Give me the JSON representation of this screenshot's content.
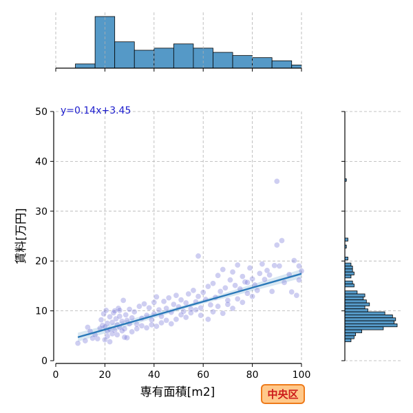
{
  "chart_data": {
    "type": "scatter",
    "main": {
      "xlabel": "専有面積[m2]",
      "ylabel": "賃料[万円]",
      "xlim": [
        0,
        100
      ],
      "ylim": [
        0,
        50
      ],
      "xticks": [
        0,
        20,
        40,
        60,
        80,
        100
      ],
      "yticks": [
        0,
        10,
        20,
        30,
        40,
        50
      ],
      "grid": true,
      "annotation": "y=0.14x+3.45",
      "regression": {
        "slope": 0.14,
        "intercept": 3.45,
        "x_range": [
          9,
          100
        ]
      },
      "points": [
        [
          18,
          6.5
        ],
        [
          18.5,
          8.2
        ],
        [
          19,
          7.1
        ],
        [
          19.5,
          9.4
        ],
        [
          20,
          6.8
        ],
        [
          20.5,
          10.1
        ],
        [
          21,
          7.5
        ],
        [
          21,
          5.9
        ],
        [
          22,
          8.8
        ],
        [
          22,
          6.3
        ],
        [
          23,
          7.7
        ],
        [
          23.5,
          9.6
        ],
        [
          24,
          6.1
        ],
        [
          24.5,
          8.4
        ],
        [
          25,
          7.2
        ],
        [
          25.5,
          10.5
        ],
        [
          26,
          6.7
        ],
        [
          26,
          8.9
        ],
        [
          27,
          7.9
        ],
        [
          27.5,
          12.1
        ],
        [
          28,
          6.4
        ],
        [
          28.5,
          9.2
        ],
        [
          29,
          8.1
        ],
        [
          30,
          7.4
        ],
        [
          30,
          10.3
        ],
        [
          31,
          8.6
        ],
        [
          32,
          9.8
        ],
        [
          33,
          7.3
        ],
        [
          34,
          10.9
        ],
        [
          35,
          8.5
        ],
        [
          36,
          11.4
        ],
        [
          37,
          9.1
        ],
        [
          38,
          10.6
        ],
        [
          39,
          8.2
        ],
        [
          40,
          11.7
        ],
        [
          40,
          9.4
        ],
        [
          41,
          12.8
        ],
        [
          42,
          10.2
        ],
        [
          43,
          8.9
        ],
        [
          44,
          11.9
        ],
        [
          45,
          10.5
        ],
        [
          46,
          12.6
        ],
        [
          47,
          9.7
        ],
        [
          48,
          11.3
        ],
        [
          49,
          13.1
        ],
        [
          50,
          10.8
        ],
        [
          51,
          12.2
        ],
        [
          52,
          9.9
        ],
        [
          53,
          11.6
        ],
        [
          54,
          13.4
        ],
        [
          55,
          10.4
        ],
        [
          56,
          14.1
        ],
        [
          57,
          11.8
        ],
        [
          58,
          12.9
        ],
        [
          58,
          21.0
        ],
        [
          59,
          10.6
        ],
        [
          60,
          13.7
        ],
        [
          61,
          12.3
        ],
        [
          62,
          14.9
        ],
        [
          63,
          11.2
        ],
        [
          64,
          15.5
        ],
        [
          65,
          12.7
        ],
        [
          66,
          17.1
        ],
        [
          67,
          13.9
        ],
        [
          68,
          18.3
        ],
        [
          69,
          14.6
        ],
        [
          70,
          12.1
        ],
        [
          71,
          16.2
        ],
        [
          72,
          17.8
        ],
        [
          73,
          15.1
        ],
        [
          74,
          19.2
        ],
        [
          75,
          14.4
        ],
        [
          76,
          16.9
        ],
        [
          77,
          15.8
        ],
        [
          78,
          13.5
        ],
        [
          79,
          18.6
        ],
        [
          80,
          16.4
        ],
        [
          81,
          15.2
        ],
        [
          82,
          14.1
        ],
        [
          83,
          17.5
        ],
        [
          84,
          19.4
        ],
        [
          85,
          16.3
        ],
        [
          86,
          18.1
        ],
        [
          87,
          17.2
        ],
        [
          88,
          13.9
        ],
        [
          89,
          19.1
        ],
        [
          90,
          23.2
        ],
        [
          90,
          36.0
        ],
        [
          91,
          19.0
        ],
        [
          92,
          24.1
        ],
        [
          93,
          15.7
        ],
        [
          95,
          17.3
        ],
        [
          96,
          13.8
        ],
        [
          97,
          20.1
        ],
        [
          98,
          13.1
        ],
        [
          99,
          16.2
        ],
        [
          99,
          19.0
        ],
        [
          100,
          18.0
        ],
        [
          26,
          10.1
        ],
        [
          24,
          10.0
        ],
        [
          21,
          4.9
        ],
        [
          23,
          5.4
        ],
        [
          25,
          5.2
        ],
        [
          27,
          6.0
        ],
        [
          29,
          4.6
        ],
        [
          31,
          5.8
        ],
        [
          33,
          6.4
        ],
        [
          35,
          7.0
        ],
        [
          37,
          6.6
        ],
        [
          39,
          7.2
        ],
        [
          41,
          6.9
        ],
        [
          43,
          7.6
        ],
        [
          45,
          8.1
        ],
        [
          47,
          7.4
        ],
        [
          49,
          8.3
        ],
        [
          51,
          9.2
        ],
        [
          53,
          8.7
        ],
        [
          55,
          9.6
        ],
        [
          57,
          10.2
        ],
        [
          59,
          9.1
        ],
        [
          17,
          4.4
        ],
        [
          15,
          4.5
        ],
        [
          13,
          6.7
        ],
        [
          12,
          4.0
        ],
        [
          9,
          3.5
        ],
        [
          14,
          5.9
        ],
        [
          16,
          5.2
        ],
        [
          22,
          3.8
        ],
        [
          20,
          4.2
        ],
        [
          28,
          4.7
        ],
        [
          62,
          8.3
        ],
        [
          64,
          9.8
        ],
        [
          66,
          10.9
        ],
        [
          68,
          9.5
        ],
        [
          70,
          11.3
        ],
        [
          72,
          10.5
        ],
        [
          74,
          12.4
        ],
        [
          76,
          11.7
        ],
        [
          78,
          15.7
        ],
        [
          80,
          12.9
        ]
      ]
    },
    "top_histogram": {
      "axis": "x",
      "bin_edges": [
        0,
        8,
        16,
        24,
        32,
        40,
        48,
        56,
        64,
        72,
        80,
        88,
        96,
        100
      ],
      "counts": [
        0,
        4,
        49,
        25,
        17,
        19,
        23,
        19,
        15,
        12,
        10,
        7,
        3
      ]
    },
    "right_histogram": {
      "axis": "y",
      "bins": [
        [
          36.0,
          36.5,
          1
        ],
        [
          24.0,
          24.6,
          2
        ],
        [
          22.6,
          23.2,
          1
        ],
        [
          20.2,
          20.8,
          2
        ],
        [
          19.0,
          19.6,
          4
        ],
        [
          18.4,
          19.0,
          5
        ],
        [
          17.8,
          18.4,
          5
        ],
        [
          17.2,
          17.8,
          6
        ],
        [
          16.6,
          17.2,
          4
        ],
        [
          15.4,
          16.0,
          5
        ],
        [
          14.8,
          15.4,
          6
        ],
        [
          13.4,
          14.0,
          8
        ],
        [
          12.8,
          13.4,
          13
        ],
        [
          12.2,
          12.8,
          12
        ],
        [
          11.6,
          12.2,
          14
        ],
        [
          11.0,
          11.6,
          16
        ],
        [
          10.4,
          11.0,
          13
        ],
        [
          9.8,
          10.4,
          15
        ],
        [
          9.2,
          9.8,
          26
        ],
        [
          8.6,
          9.2,
          31
        ],
        [
          8.0,
          8.6,
          33
        ],
        [
          7.4,
          8.0,
          32
        ],
        [
          6.8,
          7.4,
          34
        ],
        [
          6.2,
          6.8,
          25
        ],
        [
          5.6,
          6.2,
          11
        ],
        [
          5.0,
          5.6,
          7
        ],
        [
          4.4,
          5.0,
          6
        ],
        [
          3.8,
          4.4,
          4
        ]
      ]
    }
  },
  "badge": {
    "label": "中央区"
  },
  "colors": {
    "hist_fill": "#5599c7",
    "point": "#6a6ad6",
    "line": "#2878b8",
    "annotation": "#1a1acc",
    "badge_bg": "#ffc88a",
    "badge_border": "#ee7a1a",
    "badge_text": "#cc1a1a"
  }
}
